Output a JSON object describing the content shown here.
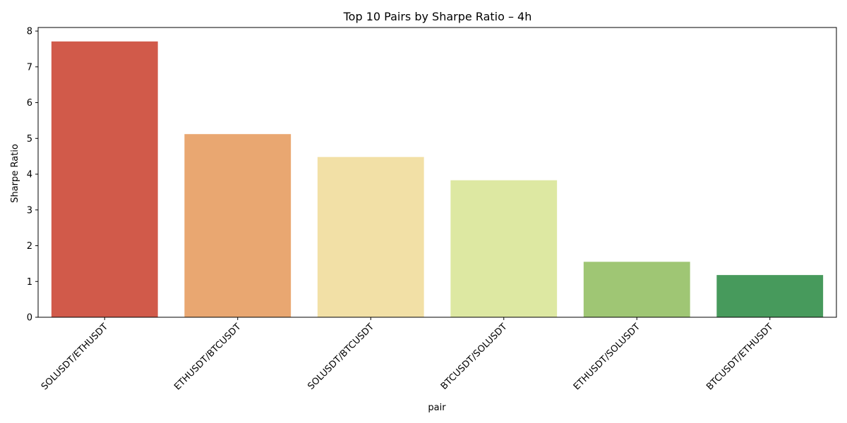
{
  "chart_data": {
    "type": "bar",
    "title": "Top 10 Pairs by Sharpe Ratio – 4h",
    "xlabel": "pair",
    "ylabel": "Sharpe Ratio",
    "categories": [
      "SOLUSDT/ETHUSDT",
      "ETHUSDT/BTCUSDT",
      "SOLUSDT/BTCUSDT",
      "BTCUSDT/SOLUSDT",
      "ETHUSDT/SOLUSDT",
      "BTCUSDT/ETHUSDT"
    ],
    "values": [
      7.71,
      5.12,
      4.48,
      3.83,
      1.55,
      1.18
    ],
    "colors": [
      "#d15a4a",
      "#e9a771",
      "#f2e0a6",
      "#dde8a2",
      "#9fc674",
      "#479a5c"
    ],
    "ylim": [
      0,
      8.1
    ],
    "yticks": [
      0,
      1,
      2,
      3,
      4,
      5,
      6,
      7,
      8
    ],
    "grid": false,
    "legend": "none"
  }
}
